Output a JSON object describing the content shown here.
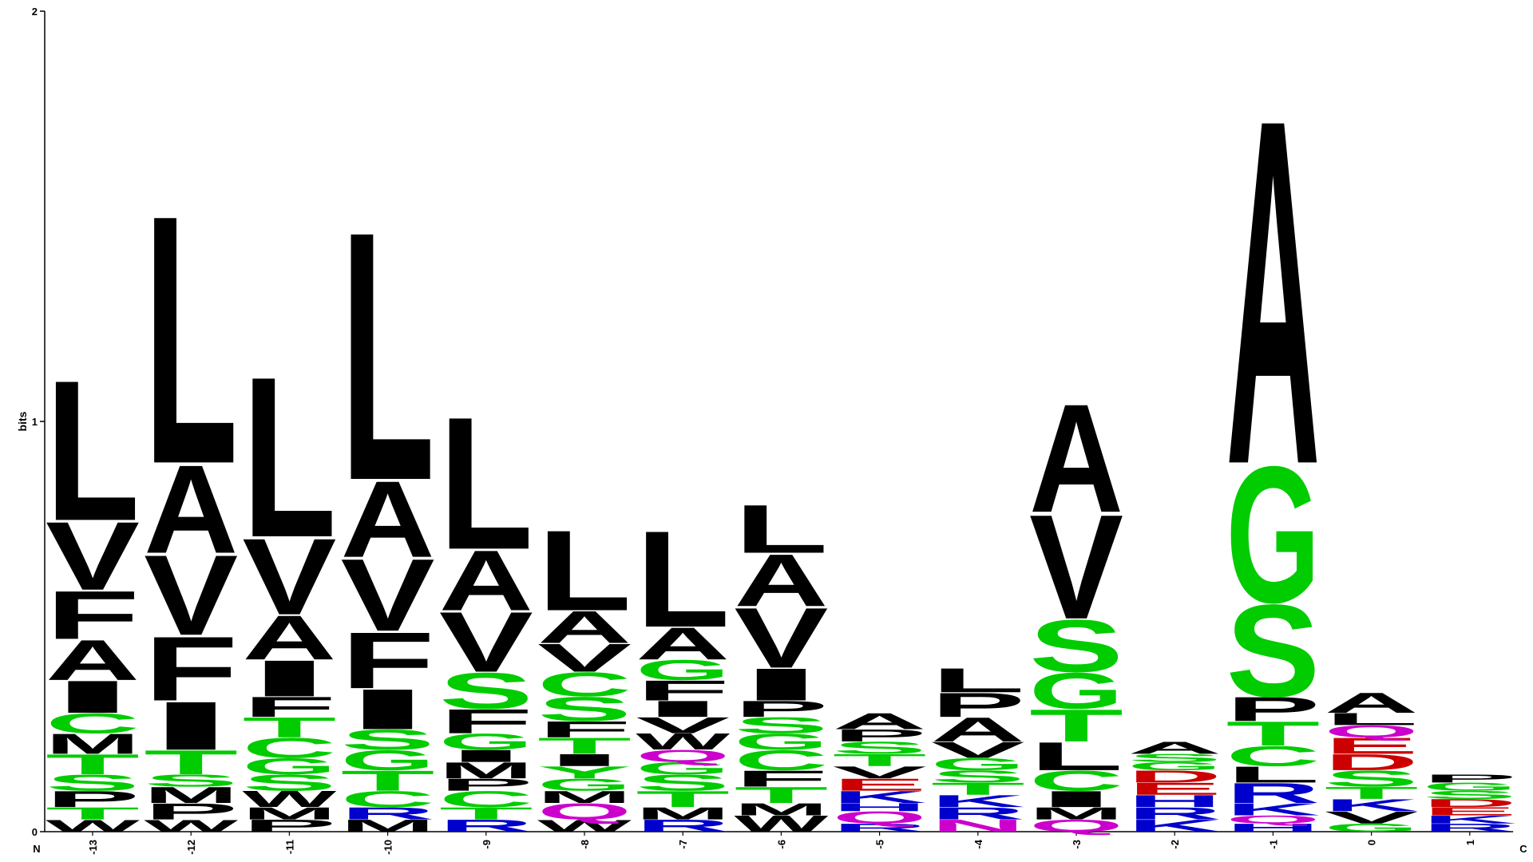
{
  "chart_data": {
    "type": "sequence-logo",
    "ylabel": "bits",
    "ylim": [
      0,
      2
    ],
    "yticks": [
      "0",
      "1",
      "2"
    ],
    "n_label": "N",
    "c_label": "C",
    "colors": {
      "hydrophobic": "#000000",
      "polar": "#00cc00",
      "basic": "#0000cc",
      "acidic": "#cc0000",
      "amide": "#cc00cc"
    },
    "residue_colors": {
      "A": "#000000",
      "V": "#000000",
      "L": "#000000",
      "I": "#000000",
      "F": "#000000",
      "M": "#000000",
      "W": "#000000",
      "P": "#000000",
      "G": "#00cc00",
      "S": "#00cc00",
      "T": "#00cc00",
      "C": "#00cc00",
      "Y": "#00cc00",
      "K": "#0000cc",
      "R": "#0000cc",
      "H": "#0000cc",
      "D": "#cc0000",
      "E": "#cc0000",
      "N": "#cc00cc",
      "Q": "#cc00cc"
    },
    "positions": [
      {
        "label": "-13",
        "stack": [
          [
            "W",
            0.03
          ],
          [
            "T",
            0.03
          ],
          [
            "P",
            0.04
          ],
          [
            "S",
            0.04
          ],
          [
            "T",
            0.05
          ],
          [
            "M",
            0.05
          ],
          [
            "C",
            0.05
          ],
          [
            "I",
            0.08
          ],
          [
            "A",
            0.1
          ],
          [
            "F",
            0.12
          ],
          [
            "V",
            0.17
          ],
          [
            "L",
            0.35
          ]
        ]
      },
      {
        "label": "-12",
        "stack": [
          [
            "W",
            0.03
          ],
          [
            "P",
            0.04
          ],
          [
            "M",
            0.04
          ],
          [
            "S",
            0.03
          ],
          [
            "T",
            0.06
          ],
          [
            "I",
            0.12
          ],
          [
            "F",
            0.16
          ],
          [
            "V",
            0.2
          ],
          [
            "A",
            0.22
          ],
          [
            "L",
            0.62
          ]
        ]
      },
      {
        "label": "-11",
        "stack": [
          [
            "P",
            0.03
          ],
          [
            "M",
            0.03
          ],
          [
            "W",
            0.04
          ],
          [
            "S",
            0.04
          ],
          [
            "G",
            0.04
          ],
          [
            "C",
            0.05
          ],
          [
            "T",
            0.05
          ],
          [
            "F",
            0.05
          ],
          [
            "I",
            0.09
          ],
          [
            "A",
            0.11
          ],
          [
            "V",
            0.19
          ],
          [
            "L",
            0.4
          ]
        ]
      },
      {
        "label": "-10",
        "stack": [
          [
            "M",
            0.03
          ],
          [
            "R",
            0.03
          ],
          [
            "C",
            0.04
          ],
          [
            "T",
            0.05
          ],
          [
            "G",
            0.05
          ],
          [
            "S",
            0.05
          ],
          [
            "I",
            0.1
          ],
          [
            "F",
            0.14
          ],
          [
            "V",
            0.18
          ],
          [
            "A",
            0.19
          ],
          [
            "L",
            0.62
          ]
        ]
      },
      {
        "label": "-9",
        "stack": [
          [
            "R",
            0.03
          ],
          [
            "T",
            0.03
          ],
          [
            "C",
            0.04
          ],
          [
            "P",
            0.03
          ],
          [
            "M",
            0.04
          ],
          [
            "I",
            0.03
          ],
          [
            "G",
            0.04
          ],
          [
            "F",
            0.06
          ],
          [
            "S",
            0.09
          ],
          [
            "V",
            0.15
          ],
          [
            "A",
            0.15
          ],
          [
            "L",
            0.33
          ]
        ]
      },
      {
        "label": "-8",
        "stack": [
          [
            "W",
            0.03
          ],
          [
            "Q",
            0.04
          ],
          [
            "M",
            0.03
          ],
          [
            "G",
            0.03
          ],
          [
            "Y",
            0.03
          ],
          [
            "I",
            0.03
          ],
          [
            "T",
            0.04
          ],
          [
            "F",
            0.04
          ],
          [
            "S",
            0.06
          ],
          [
            "C",
            0.06
          ],
          [
            "V",
            0.07
          ],
          [
            "A",
            0.08
          ],
          [
            "L",
            0.2
          ]
        ]
      },
      {
        "label": "-7",
        "stack": [
          [
            "R",
            0.03
          ],
          [
            "M",
            0.03
          ],
          [
            "T",
            0.04
          ],
          [
            "S",
            0.04
          ],
          [
            "G",
            0.03
          ],
          [
            "Q",
            0.03
          ],
          [
            "W",
            0.04
          ],
          [
            "V",
            0.04
          ],
          [
            "I",
            0.04
          ],
          [
            "F",
            0.05
          ],
          [
            "G",
            0.05
          ],
          [
            "A",
            0.08
          ],
          [
            "L",
            0.24
          ]
        ]
      },
      {
        "label": "-6",
        "stack": [
          [
            "W",
            0.04
          ],
          [
            "M",
            0.03
          ],
          [
            "T",
            0.04
          ],
          [
            "F",
            0.04
          ],
          [
            "C",
            0.05
          ],
          [
            "G",
            0.04
          ],
          [
            "S",
            0.04
          ],
          [
            "P",
            0.04
          ],
          [
            "I",
            0.08
          ],
          [
            "V",
            0.15
          ],
          [
            "A",
            0.13
          ],
          [
            "L",
            0.12
          ]
        ]
      },
      {
        "label": "-5",
        "stack": [
          [
            "R",
            0.02
          ],
          [
            "Q",
            0.03
          ],
          [
            "H",
            0.02
          ],
          [
            "K",
            0.03
          ],
          [
            "E",
            0.03
          ],
          [
            "V",
            0.03
          ],
          [
            "T",
            0.03
          ],
          [
            "S",
            0.03
          ],
          [
            "P",
            0.03
          ],
          [
            "A",
            0.04
          ]
        ]
      },
      {
        "label": "-4",
        "stack": [
          [
            "N",
            0.03
          ],
          [
            "R",
            0.03
          ],
          [
            "K",
            0.03
          ],
          [
            "T",
            0.03
          ],
          [
            "S",
            0.03
          ],
          [
            "G",
            0.03
          ],
          [
            "V",
            0.04
          ],
          [
            "A",
            0.06
          ],
          [
            "P",
            0.06
          ],
          [
            "L",
            0.06
          ]
        ]
      },
      {
        "label": "-3",
        "stack": [
          [
            "Q",
            0.03
          ],
          [
            "M",
            0.03
          ],
          [
            "I",
            0.04
          ],
          [
            "C",
            0.05
          ],
          [
            "L",
            0.07
          ],
          [
            "T",
            0.08
          ],
          [
            "G",
            0.09
          ],
          [
            "S",
            0.13
          ],
          [
            "V",
            0.26
          ],
          [
            "A",
            0.27
          ]
        ]
      },
      {
        "label": "-2",
        "stack": [
          [
            "K",
            0.03
          ],
          [
            "R",
            0.03
          ],
          [
            "H",
            0.03
          ],
          [
            "E",
            0.03
          ],
          [
            "D",
            0.03
          ],
          [
            "G",
            0.02
          ],
          [
            "S",
            0.02
          ],
          [
            "A",
            0.03
          ]
        ]
      },
      {
        "label": "-1",
        "stack": [
          [
            "H",
            0.02
          ],
          [
            "Q",
            0.02
          ],
          [
            "K",
            0.03
          ],
          [
            "R",
            0.05
          ],
          [
            "L",
            0.04
          ],
          [
            "C",
            0.05
          ],
          [
            "T",
            0.06
          ],
          [
            "P",
            0.06
          ],
          [
            "S",
            0.23
          ],
          [
            "G",
            0.34
          ],
          [
            "A",
            0.86
          ]
        ]
      },
      {
        "label": "0",
        "stack": [
          [
            "G",
            0.02
          ],
          [
            "V",
            0.03
          ],
          [
            "K",
            0.03
          ],
          [
            "T",
            0.03
          ],
          [
            "S",
            0.04
          ],
          [
            "D",
            0.04
          ],
          [
            "E",
            0.04
          ],
          [
            "Q",
            0.03
          ],
          [
            "L",
            0.03
          ],
          [
            "A",
            0.05
          ]
        ]
      },
      {
        "label": "1",
        "stack": [
          [
            "R",
            0.02
          ],
          [
            "K",
            0.02
          ],
          [
            "E",
            0.02
          ],
          [
            "D",
            0.02
          ],
          [
            "S",
            0.02
          ],
          [
            "G",
            0.02
          ],
          [
            "P",
            0.02
          ]
        ]
      }
    ]
  }
}
